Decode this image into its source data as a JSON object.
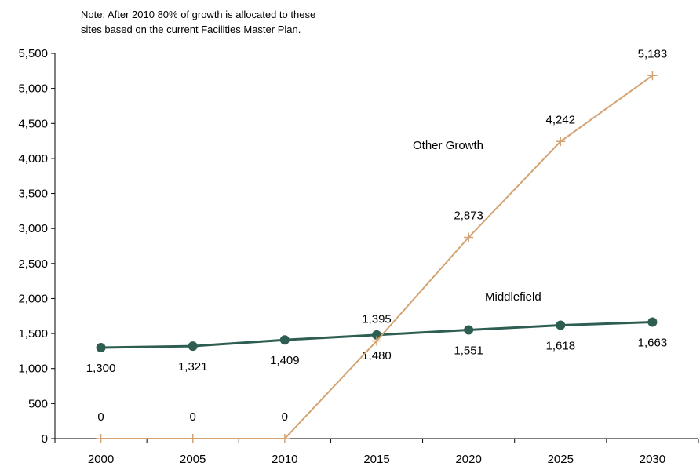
{
  "note": {
    "line1": "Note: After 2010 80% of growth is allocated to these",
    "line2": "sites based on the current Facilities Master Plan."
  },
  "chart_data": {
    "type": "line",
    "categories": [
      "2000",
      "2005",
      "2010",
      "2015",
      "2020",
      "2025",
      "2030"
    ],
    "ylim": [
      0,
      5500
    ],
    "yticks": [
      "0",
      "500",
      "1,000",
      "1,500",
      "2,000",
      "2,500",
      "3,000",
      "3,500",
      "4,000",
      "4,500",
      "5,000",
      "5,500"
    ],
    "grid": false,
    "series": [
      {
        "name": "Middlefield",
        "values": [
          1300,
          1321,
          1409,
          1480,
          1551,
          1618,
          1663
        ],
        "labels": [
          "1,300",
          "1,321",
          "1,409",
          "1,480",
          "1,551",
          "1,618",
          "1,663"
        ],
        "color": "#2e5e52",
        "marker": "circle"
      },
      {
        "name": "Other Growth",
        "values": [
          0,
          0,
          0,
          1395,
          2873,
          4242,
          5183
        ],
        "labels": [
          "0",
          "0",
          "0",
          "1,395",
          "2,873",
          "4,242",
          "5,183"
        ],
        "color": "#d4a373",
        "marker": "plus"
      }
    ]
  }
}
